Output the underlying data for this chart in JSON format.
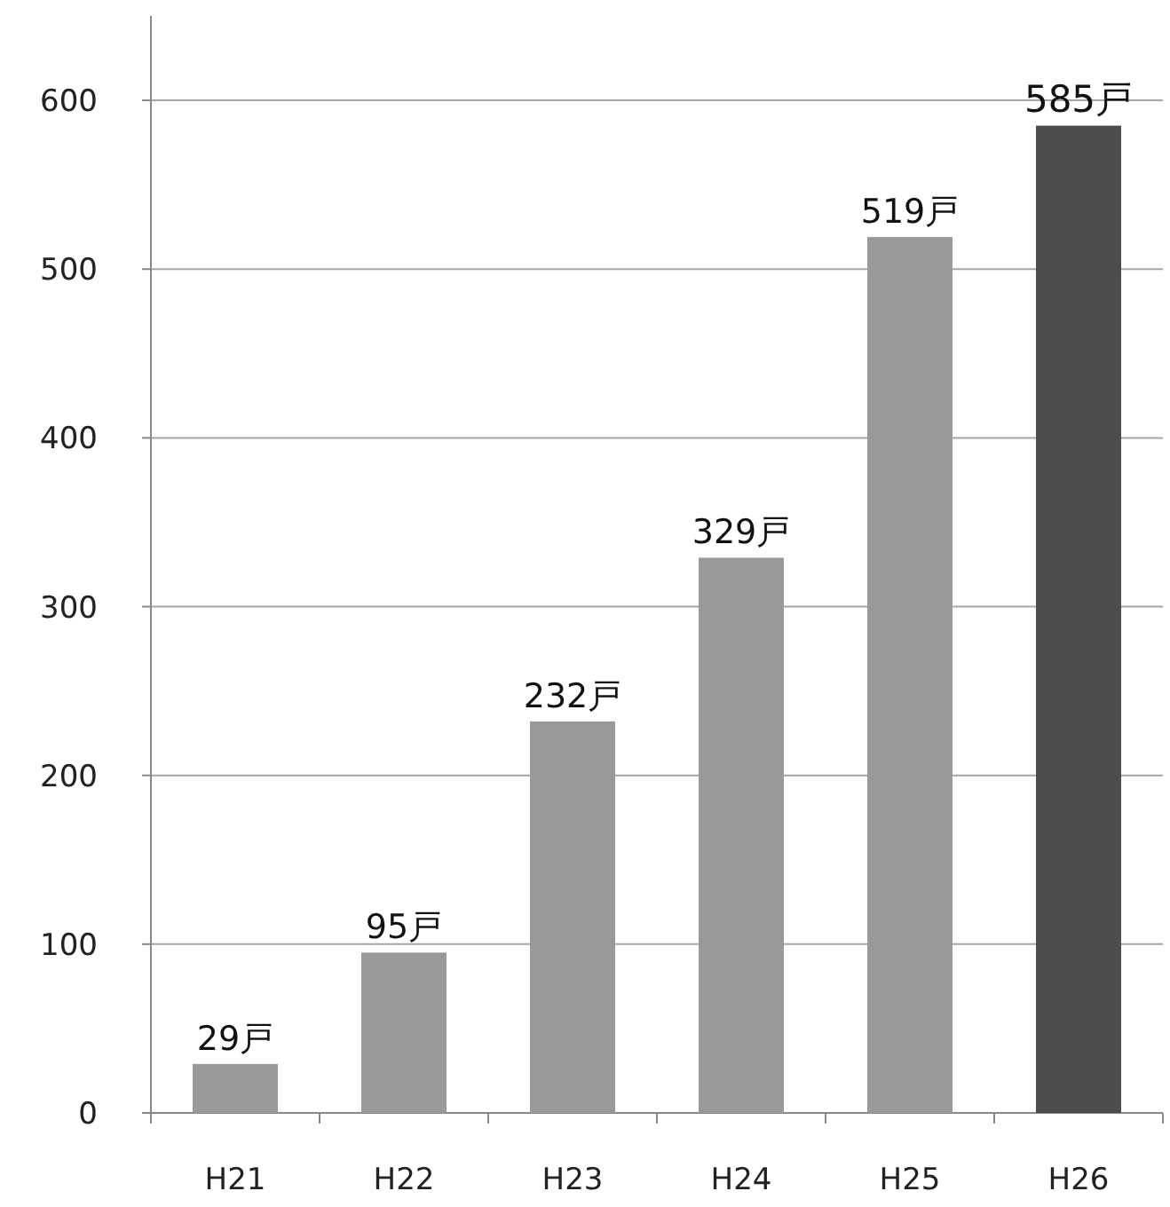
{
  "chart_data": {
    "type": "bar",
    "categories": [
      "H21",
      "H22",
      "H23",
      "H24",
      "H25",
      "H26"
    ],
    "values": [
      29,
      95,
      232,
      329,
      519,
      585
    ],
    "colors": [
      "#999999",
      "#999999",
      "#999999",
      "#999999",
      "#999999",
      "#4d4d4d"
    ],
    "value_labels": [
      "29戸",
      "95戸",
      "232戸",
      "329戸",
      "519戸",
      "585戸"
    ],
    "ylim": [
      0,
      650
    ],
    "yticks": [
      0,
      100,
      200,
      300,
      400,
      500,
      600
    ],
    "grid": "y"
  }
}
